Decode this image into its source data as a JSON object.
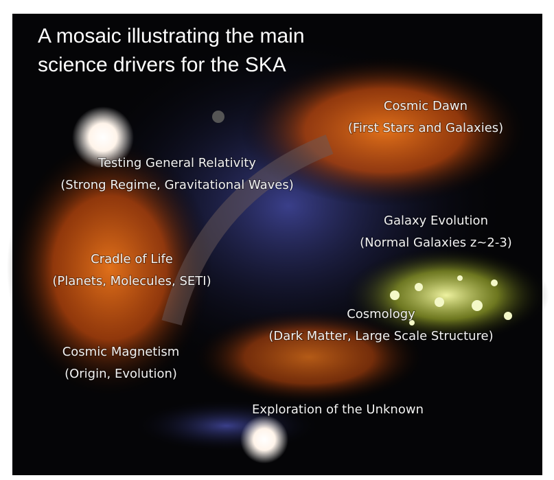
{
  "title": "A mosaic illustrating the main science drivers for the SKA",
  "labels": [
    {
      "name": "Cosmic Dawn",
      "detail": "(First Stars and Galaxies)"
    },
    {
      "name": "Testing General Relativity",
      "detail": "(Strong Regime, Gravitational Waves)"
    },
    {
      "name": "Galaxy Evolution",
      "detail": "(Normal Galaxies z~2-3)"
    },
    {
      "name": "Cradle of Life",
      "detail": "(Planets, Molecules, SETI)"
    },
    {
      "name": "Cosmology",
      "detail": "(Dark Matter, Large Scale Structure)"
    },
    {
      "name": "Cosmic Magnetism",
      "detail": "(Origin, Evolution)"
    },
    {
      "name": "Exploration of the Unknown"
    }
  ]
}
